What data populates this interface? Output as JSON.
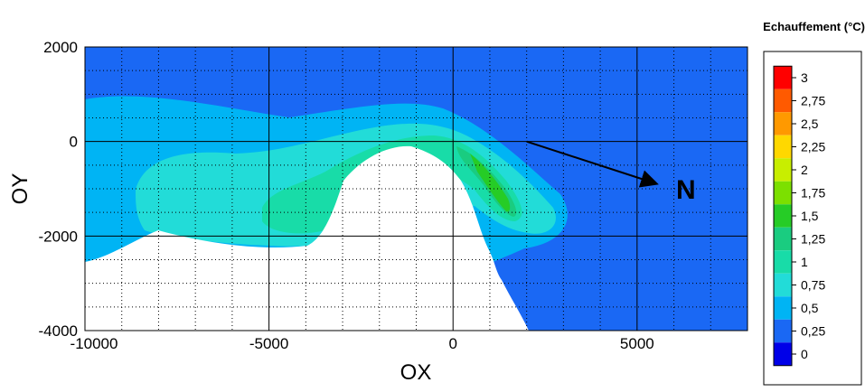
{
  "chart_data": {
    "type": "heatmap",
    "title": "",
    "xlabel": "OX",
    "ylabel": "OY",
    "xlim": [
      -10000,
      8000
    ],
    "ylim": [
      -4000,
      2000
    ],
    "x_ticks": [
      "-10000",
      "-5000",
      "0",
      "5000"
    ],
    "x_tick_values": [
      -10000,
      -5000,
      0,
      5000
    ],
    "y_ticks": [
      "2000",
      "0",
      "-2000",
      "-4000"
    ],
    "y_tick_values": [
      2000,
      0,
      -2000,
      -4000
    ],
    "grid": true,
    "legend": {
      "title": "Echauffement (°C)",
      "placement": "right",
      "levels": [
        "3",
        "2,75",
        "2,5",
        "2,25",
        "2",
        "1,75",
        "1,5",
        "1,25",
        "1",
        "0,75",
        "0,5",
        "0,25",
        "0"
      ],
      "colors": [
        "#ff0000",
        "#ff5a00",
        "#ff9900",
        "#ffd800",
        "#c8ee00",
        "#7ce000",
        "#26cc26",
        "#1acc80",
        "#18dca8",
        "#22dcd8",
        "#00b4f4",
        "#1a68f4",
        "#0000e8"
      ]
    },
    "annotations": [
      {
        "text": "N",
        "type": "arrow",
        "from": [
          2000,
          0
        ],
        "to": [
          5300,
          -1000
        ]
      }
    ],
    "plume": {
      "description_levels": [
        "0,25",
        "0,5",
        "0,75",
        "1",
        "1,5"
      ],
      "max_region_x": [
        0,
        2000
      ],
      "max_region_y": [
        -1700,
        0
      ]
    }
  },
  "colors": {
    "background_field": "#1a68f4",
    "land": "#ffffff",
    "contour_0_5": "#00b4f4",
    "contour_0_75": "#22dcd8",
    "contour_1": "#18dca8",
    "contour_1_25": "#1acc80",
    "contour_1_5": "#26cc26"
  }
}
